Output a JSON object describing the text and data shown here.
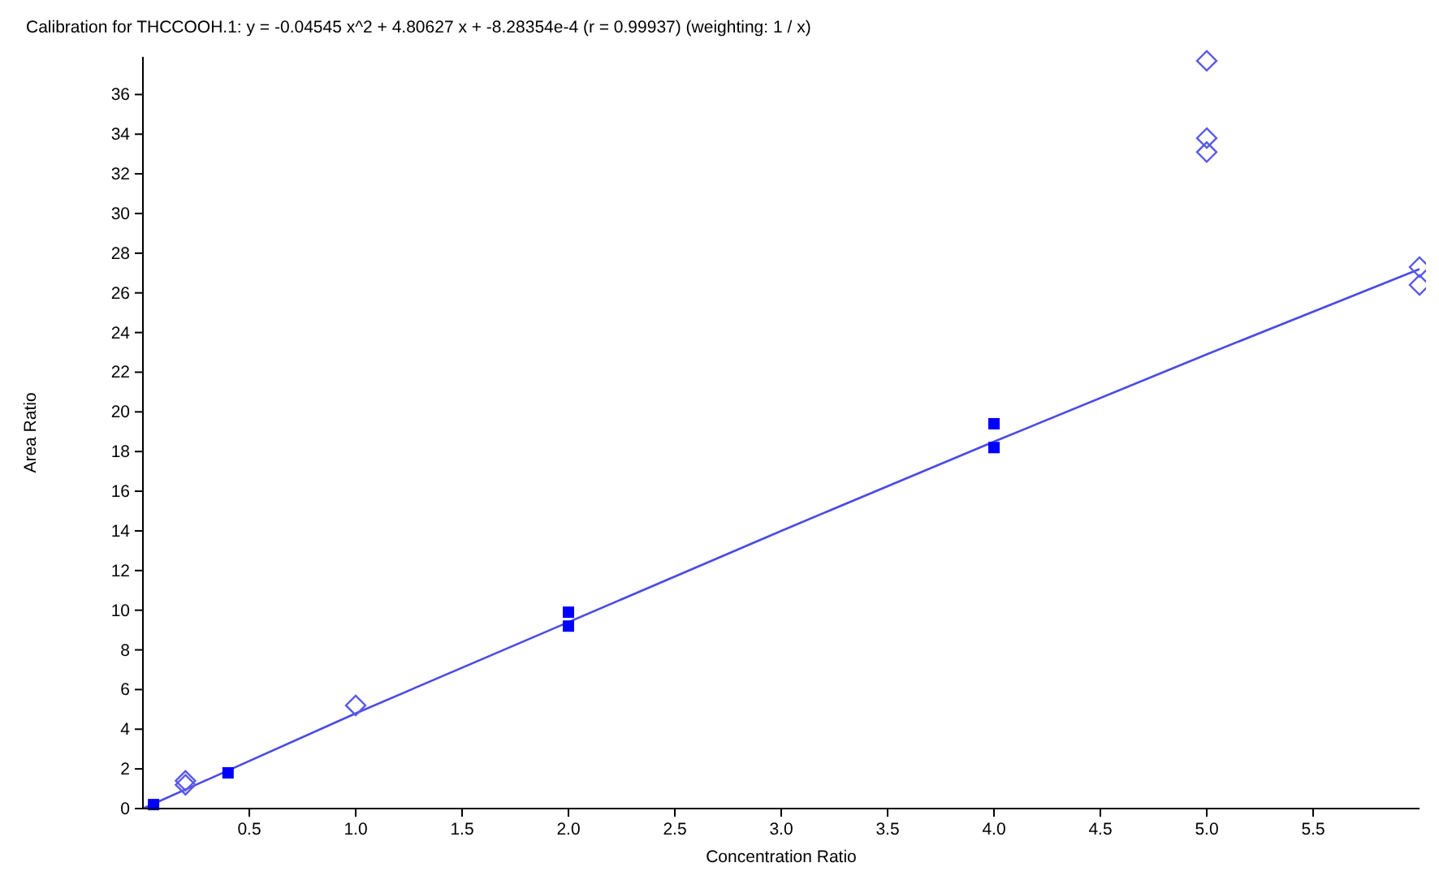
{
  "chart_data": {
    "type": "scatter",
    "title": "Calibration for THCCOOH.1: y = -0.04545 x^2 + 4.80627 x + -8.28354e-4 (r = 0.99937)  (weighting: 1 / x)",
    "xlabel": "Concentration Ratio",
    "ylabel": "Area Ratio",
    "xlim": [
      0,
      6
    ],
    "ylim": [
      0,
      37.9
    ],
    "xticks": [
      0.5,
      {
        "value": 1,
        "label": "1.0"
      },
      1.5,
      {
        "value": 2,
        "label": "2.0"
      },
      2.5,
      {
        "value": 3,
        "label": "3.0"
      },
      3.5,
      {
        "value": 4,
        "label": "4.0"
      },
      4.5,
      {
        "value": 5,
        "label": "5.0"
      },
      5.5
    ],
    "yticks": [
      0,
      2,
      4,
      6,
      8,
      10,
      12,
      14,
      16,
      18,
      20,
      22,
      24,
      26,
      28,
      30,
      32,
      34,
      36
    ],
    "grid": false,
    "series": [
      {
        "type": "line",
        "color": "#4b4be6",
        "marker": "none",
        "line_style": "solid",
        "x": [
          0,
          1,
          2,
          3,
          4,
          5,
          6
        ],
        "values": [
          0,
          4.8,
          9.4,
          14.0,
          18.5,
          22.9,
          27.2
        ]
      },
      {
        "color": "#0000ff",
        "marker": "square",
        "x": [
          0.05,
          0.4,
          2.0,
          2.0,
          4.0,
          4.0
        ],
        "values": [
          0.2,
          1.8,
          9.9,
          9.2,
          19.4,
          18.2
        ]
      },
      {
        "color": "#5a5ae6",
        "marker": "diamond",
        "x": [
          0.2,
          0.2,
          1.0,
          5.0,
          5.0,
          5.0,
          6.0,
          6.0
        ],
        "values": [
          1.4,
          1.2,
          5.2,
          37.7,
          33.8,
          33.1,
          27.3,
          26.4
        ]
      }
    ]
  }
}
